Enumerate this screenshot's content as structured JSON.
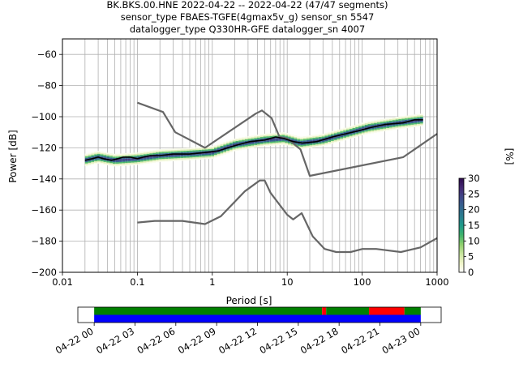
{
  "chart_data": [
    {
      "type": "heatmap",
      "title_lines": [
        "BK.BKS.00.HNE   2022-04-22 -- 2022-04-22  (47/47 segments)",
        "sensor_type FBAES-TGFE(4gmax5v_g) sensor_sn 5547",
        "datalogger_type Q330HR-GFE datalogger_sn 4007"
      ],
      "xlabel": "Period [s]",
      "ylabel": "Power [dB]",
      "xscale": "log",
      "xlim": [
        0.01,
        1000
      ],
      "ylim": [
        -200,
        -50
      ],
      "x_ticks": [
        0.01,
        0.1,
        1,
        10,
        100,
        1000
      ],
      "x_tick_labels": [
        "0.01",
        "0.1",
        "1",
        "10",
        "100",
        "1000"
      ],
      "y_ticks": [
        -200,
        -180,
        -160,
        -140,
        -120,
        -100,
        -80,
        -60
      ],
      "y_tick_labels": [
        "−200",
        "−180",
        "−160",
        "−140",
        "−120",
        "−100",
        "−80",
        "−60"
      ],
      "grid": true,
      "colorbar": {
        "label": "[%]",
        "range": [
          0,
          30
        ],
        "ticks": [
          0,
          5,
          10,
          15,
          20,
          25,
          30
        ],
        "colors": [
          "#ffffff",
          "#f0f5c8",
          "#c9e6a0",
          "#8fcf6d",
          "#3fb36b",
          "#1e9a8a",
          "#2a7c8e",
          "#33638d",
          "#3f4788",
          "#442a73",
          "#2e0b4e"
        ]
      },
      "series": [
        {
          "role": "high-noise-model",
          "color": "#666666",
          "points": [
            [
              0.1,
              -91
            ],
            [
              0.22,
              -97
            ],
            [
              0.32,
              -110
            ],
            [
              0.8,
              -120
            ],
            [
              3.8,
              -98
            ],
            [
              4.6,
              -96
            ],
            [
              6.2,
              -101
            ],
            [
              7.9,
              -113
            ],
            [
              10,
              -114
            ],
            [
              15,
              -121
            ],
            [
              20,
              -138
            ],
            [
              354,
              -126
            ],
            [
              1000,
              -111
            ]
          ]
        },
        {
          "role": "low-noise-model",
          "color": "#666666",
          "points": [
            [
              0.1,
              -168
            ],
            [
              0.17,
              -167
            ],
            [
              0.4,
              -167
            ],
            [
              0.8,
              -169
            ],
            [
              1.3,
              -164
            ],
            [
              2.7,
              -148
            ],
            [
              4.3,
              -141
            ],
            [
              5.0,
              -141
            ],
            [
              6.0,
              -149
            ],
            [
              10,
              -163
            ],
            [
              12,
              -166
            ],
            [
              15.6,
              -162
            ],
            [
              21.9,
              -177
            ],
            [
              31.6,
              -185
            ],
            [
              45,
              -187
            ],
            [
              70,
              -187
            ],
            [
              101,
              -185
            ],
            [
              154,
              -185
            ],
            [
              328,
              -187
            ],
            [
              600,
              -184
            ],
            [
              1000,
              -178
            ]
          ]
        },
        {
          "role": "mode",
          "color": "#000000",
          "points": [
            [
              0.02,
              -128
            ],
            [
              0.025,
              -127
            ],
            [
              0.03,
              -126
            ],
            [
              0.035,
              -127
            ],
            [
              0.045,
              -128
            ],
            [
              0.055,
              -127
            ],
            [
              0.065,
              -126
            ],
            [
              0.08,
              -126
            ],
            [
              0.1,
              -127
            ],
            [
              0.12,
              -126
            ],
            [
              0.15,
              -125
            ],
            [
              0.2,
              -125
            ],
            [
              0.3,
              -124
            ],
            [
              0.5,
              -124
            ],
            [
              0.8,
              -123
            ],
            [
              1.2,
              -122
            ],
            [
              1.6,
              -120
            ],
            [
              2.2,
              -118
            ],
            [
              3.2,
              -116
            ],
            [
              5,
              -115
            ],
            [
              7,
              -113
            ],
            [
              9,
              -114
            ],
            [
              12,
              -116
            ],
            [
              16,
              -117
            ],
            [
              25,
              -116
            ],
            [
              40,
              -113
            ],
            [
              60,
              -111
            ],
            [
              90,
              -109
            ],
            [
              130,
              -107
            ],
            [
              200,
              -105
            ],
            [
              350,
              -104
            ],
            [
              500,
              -102
            ],
            [
              650,
              -102
            ]
          ]
        }
      ],
      "density_band": [
        [
          0.02,
          -128
        ],
        [
          0.03,
          -126
        ],
        [
          0.05,
          -128
        ],
        [
          0.1,
          -127
        ],
        [
          0.2,
          -125
        ],
        [
          0.5,
          -124
        ],
        [
          1,
          -123
        ],
        [
          2,
          -118
        ],
        [
          5,
          -115
        ],
        [
          9,
          -114
        ],
        [
          15,
          -117
        ],
        [
          30,
          -115
        ],
        [
          60,
          -111
        ],
        [
          120,
          -107
        ],
        [
          300,
          -104
        ],
        [
          650,
          -102
        ]
      ]
    },
    {
      "type": "timeline",
      "x_tick_labels": [
        "04-22 00",
        "04-22 03",
        "04-22 06",
        "04-22 09",
        "04-22 12",
        "04-22 15",
        "04-22 18",
        "04-22 21",
        "04-23 00"
      ],
      "xlim_hours": [
        -1.2,
        25.5
      ],
      "rows": [
        {
          "name": "",
          "segments": [
            {
              "start": 0,
              "end": 16.75,
              "color": "#008000"
            },
            {
              "start": 16.75,
              "end": 17.05,
              "color": "#ff0000"
            },
            {
              "start": 17.05,
              "end": 20.2,
              "color": "#008000"
            },
            {
              "start": 20.2,
              "end": 22.8,
              "color": "#ff0000"
            },
            {
              "start": 22.8,
              "end": 24,
              "color": "#008000"
            }
          ]
        },
        {
          "name": "",
          "segments": [
            {
              "start": 0,
              "end": 24,
              "color": "#0000ff"
            }
          ]
        }
      ]
    }
  ]
}
